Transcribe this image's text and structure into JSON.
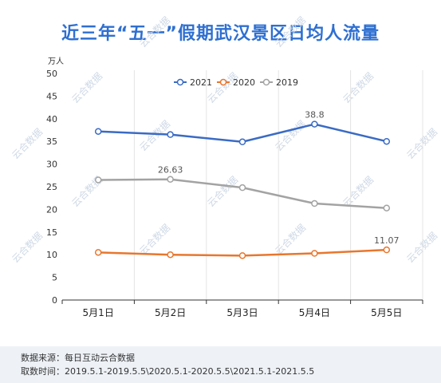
{
  "title": "近三年“五一”假期武汉景区日均人流量",
  "unit_label": "万人",
  "footer": {
    "source": "数据来源：每日互动云合数据",
    "period": "取数时间：2019.5.1-2019.5.5\\2020.5.1-2020.5.5\\2021.5.1-2021.5.5"
  },
  "watermark": "云合数据",
  "chart_data": {
    "type": "line",
    "title": "近三年“五一”假期武汉景区日均人流量",
    "ylabel": "万人",
    "xlabel": "",
    "categories": [
      "5月1日",
      "5月2日",
      "5月3日",
      "5月4日",
      "5月5日"
    ],
    "ylim": [
      0,
      50
    ],
    "yticks": [
      0,
      5,
      10,
      15,
      20,
      25,
      30,
      35,
      40,
      45,
      50
    ],
    "grid": "vertical",
    "legend_position": "top-right",
    "series": [
      {
        "name": "2021",
        "color": "#3a6bc4",
        "values": [
          37.2,
          36.5,
          34.9,
          38.8,
          35.0
        ],
        "labels": {
          "3": "38.8"
        }
      },
      {
        "name": "2020",
        "color": "#e8772e",
        "values": [
          10.5,
          10.0,
          9.8,
          10.3,
          11.07
        ],
        "labels": {
          "4": "11.07"
        }
      },
      {
        "name": "2019",
        "color": "#a3a3a3",
        "values": [
          26.5,
          26.63,
          24.8,
          21.3,
          20.3
        ],
        "labels": {
          "1": "26.63"
        }
      }
    ]
  }
}
